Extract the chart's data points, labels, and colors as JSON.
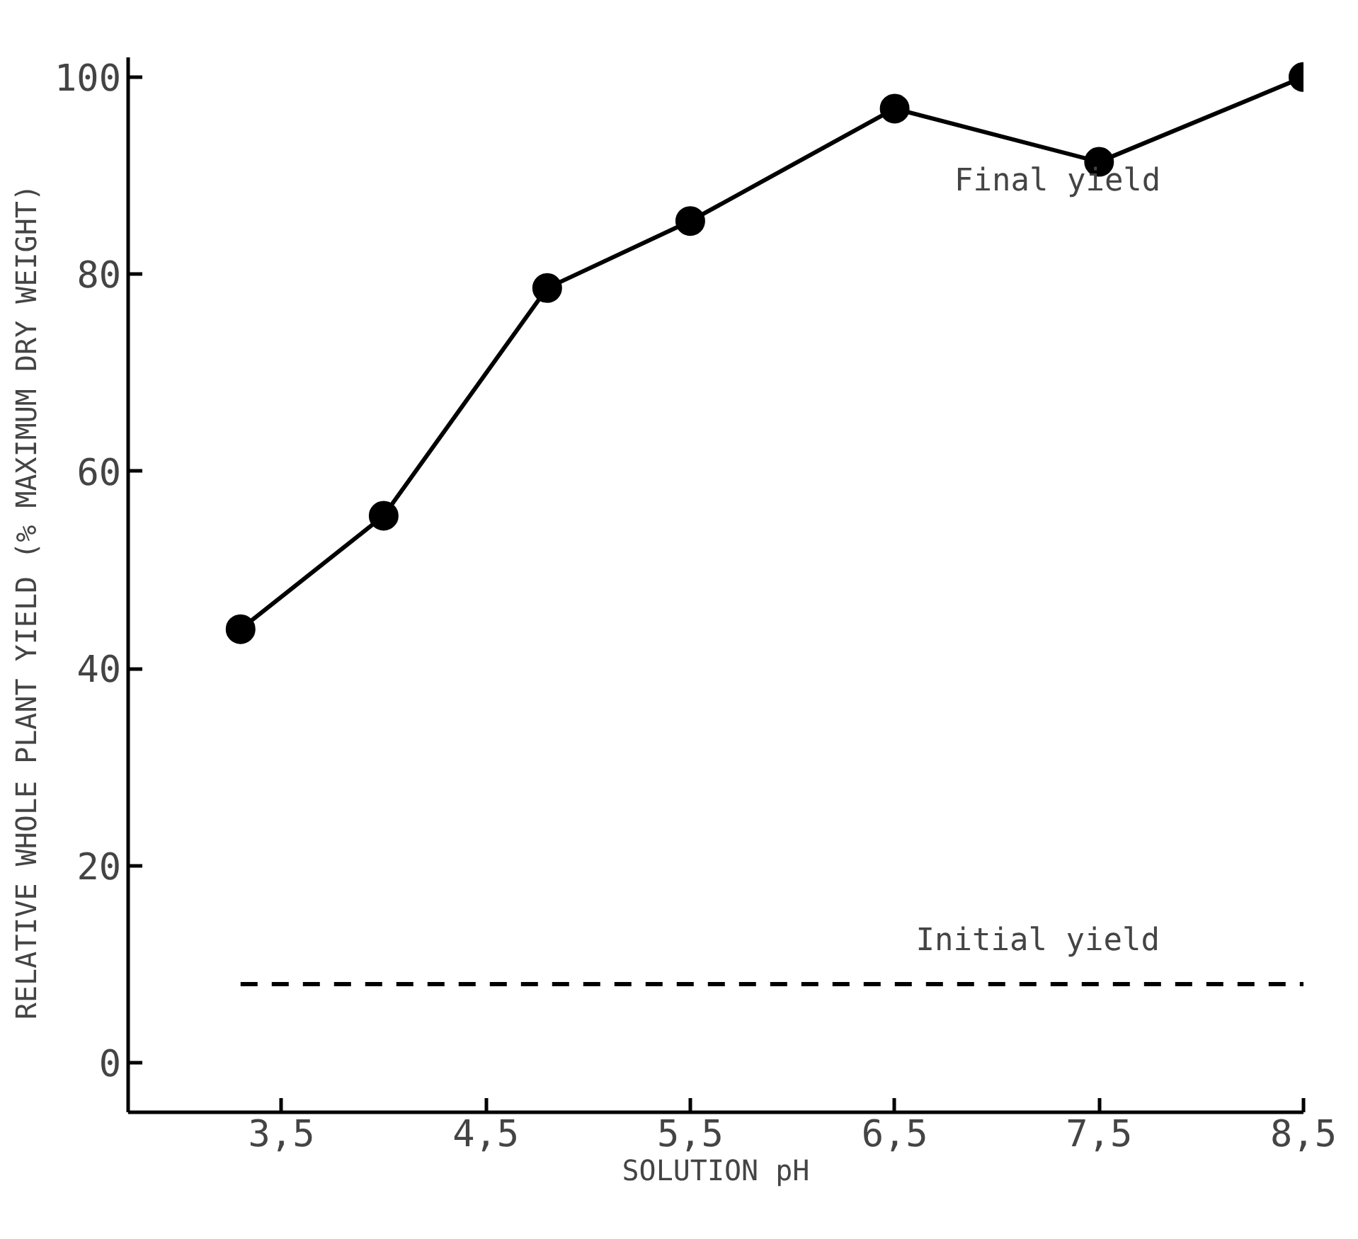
{
  "chart_data": {
    "type": "line",
    "xlabel": "SOLUTION pH",
    "ylabel": "RELATIVE WHOLE PLANT YIELD   (% MAXIMUM DRY WEIGHT)",
    "xlim": [
      2.75,
      8.5
    ],
    "ylim": [
      -5,
      102
    ],
    "xticks": [
      {
        "value": 3.5,
        "label": "3,5"
      },
      {
        "value": 4.5,
        "label": "4,5"
      },
      {
        "value": 5.5,
        "label": "5,5"
      },
      {
        "value": 6.5,
        "label": "6,5"
      },
      {
        "value": 7.5,
        "label": "7,5"
      },
      {
        "value": 8.5,
        "label": "8,5"
      }
    ],
    "yticks": [
      0,
      20,
      40,
      60,
      80,
      100
    ],
    "grid": false,
    "series": [
      {
        "name": "Final yield",
        "color": "#000000",
        "marker": "circle",
        "line_style": "solid",
        "x": [
          3.3,
          4.0,
          4.8,
          5.5,
          6.5,
          7.5,
          8.5
        ],
        "values": [
          44,
          55.5,
          78.6,
          85.4,
          96.8,
          91.4,
          100
        ]
      },
      {
        "name": "Initial yield",
        "color": "#000000",
        "marker": "none",
        "line_style": "dashed",
        "x": [
          3.3,
          8.5
        ],
        "values": [
          8,
          8
        ]
      }
    ]
  }
}
